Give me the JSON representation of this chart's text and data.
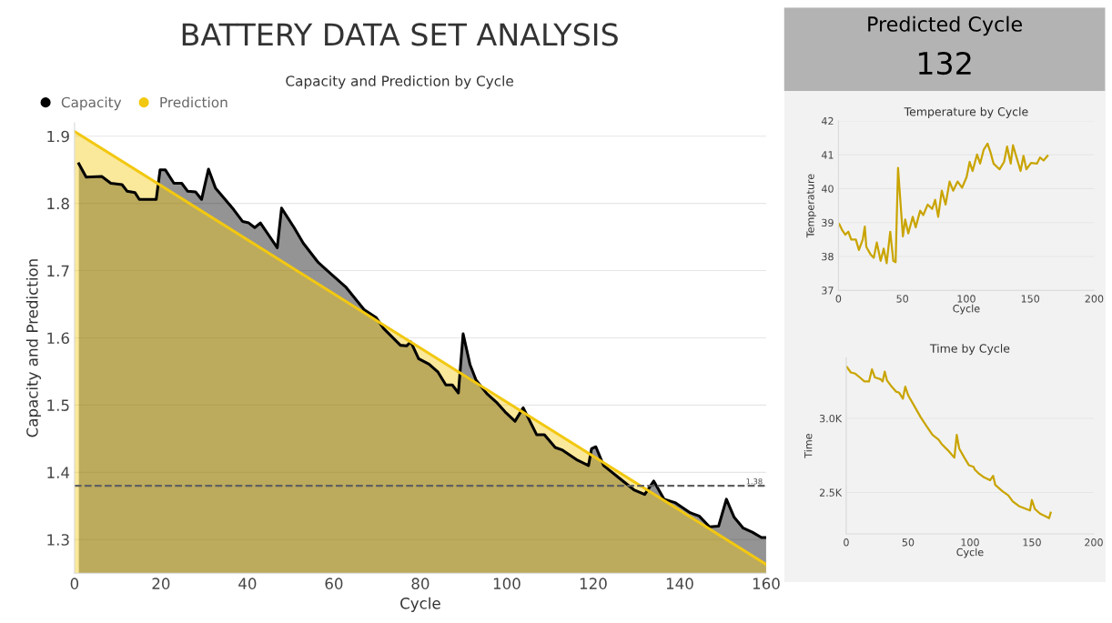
{
  "chart_data": [
    {
      "type": "area",
      "title": "BATTERY DATA SET ANALYSIS",
      "subtitle": "Capacity and Prediction by Cycle",
      "xlabel": "Cycle",
      "ylabel": "Capacity and Prediction",
      "xlim": [
        0,
        160
      ],
      "xticks": [
        0,
        20,
        40,
        60,
        80,
        100,
        120,
        140,
        160
      ],
      "ylim": [
        1.25,
        1.92
      ],
      "yticks": [
        1.3,
        1.4,
        1.5,
        1.6,
        1.7,
        1.8,
        1.9
      ],
      "grid": "y",
      "legend": "top left",
      "series": [
        {
          "name": "Capacity",
          "color": "#000000",
          "x": [
            1,
            2.7,
            6.3,
            8.4,
            11,
            12.2,
            14,
            15,
            18.9,
            19.8,
            21,
            23,
            24.8,
            26.2,
            28,
            29.4,
            31,
            32.6,
            36.8,
            38.9,
            40.3,
            41.7,
            43,
            46.9,
            47.9,
            50.8,
            52.9,
            56.4,
            59.2,
            62.7,
            67,
            69.8,
            71.5,
            75.4,
            76.8,
            77.8,
            79.6,
            82,
            84.1,
            85.9,
            87.4,
            88.8,
            89.9,
            91.5,
            92.9,
            95.4,
            97.8,
            99.6,
            101.9,
            103.8,
            106.9,
            108.7,
            111.2,
            112.9,
            116.1,
            118.9,
            119.6,
            120.6,
            122.4,
            125.9,
            129.4,
            131.9,
            134,
            136.4,
            138.9,
            142.4,
            144.5,
            146.9,
            149,
            150.8,
            152.6,
            154.7,
            156.8,
            158.9,
            160
          ],
          "values": [
            1.859,
            1.839,
            1.84,
            1.83,
            1.828,
            1.818,
            1.816,
            1.806,
            1.806,
            1.85,
            1.85,
            1.83,
            1.83,
            1.818,
            1.817,
            1.806,
            1.851,
            1.823,
            1.791,
            1.773,
            1.771,
            1.764,
            1.771,
            1.734,
            1.793,
            1.764,
            1.741,
            1.712,
            1.696,
            1.676,
            1.642,
            1.63,
            1.614,
            1.589,
            1.588,
            1.594,
            1.569,
            1.561,
            1.549,
            1.53,
            1.53,
            1.518,
            1.606,
            1.56,
            1.537,
            1.517,
            1.503,
            1.49,
            1.476,
            1.496,
            1.456,
            1.456,
            1.437,
            1.433,
            1.419,
            1.41,
            1.435,
            1.438,
            1.41,
            1.392,
            1.374,
            1.367,
            1.387,
            1.36,
            1.355,
            1.34,
            1.335,
            1.319,
            1.32,
            1.36,
            1.333,
            1.317,
            1.311,
            1.303,
            1.303
          ]
        },
        {
          "name": "Prediction",
          "color": "#f2c811",
          "x": [
            0,
            160
          ],
          "values": [
            1.907,
            1.263
          ]
        }
      ],
      "ref_lines": [
        {
          "axis": "y",
          "value": 1.38,
          "label": "1.38",
          "color": "#606060",
          "line_style": "dashed"
        }
      ]
    },
    {
      "type": "other",
      "title": "Predicted Cycle",
      "annotations": [
        "132"
      ]
    },
    {
      "type": "line",
      "title": "Temperature by Cycle",
      "xlabel": "Cycle",
      "ylabel": "Temperature",
      "xlim": [
        0,
        200
      ],
      "xticks": [
        0,
        50,
        100,
        150,
        200
      ],
      "ylim": [
        37,
        42
      ],
      "yticks": [
        37,
        38,
        39,
        40,
        41,
        42
      ],
      "grid": "y",
      "series": [
        {
          "color": "#c9a400",
          "x": [
            0.7,
            3,
            5.4,
            7.7,
            10,
            13.6,
            16,
            19,
            20.6,
            21.8,
            25.3,
            27.6,
            30,
            33,
            35.4,
            37.7,
            40.5,
            42.9,
            44.7,
            46.6,
            50.4,
            52.2,
            54.6,
            58.1,
            60.4,
            63.9,
            66.3,
            69.8,
            73.3,
            75.6,
            78,
            80.8,
            83.8,
            86.9,
            89.7,
            93.2,
            96.7,
            100.2,
            102.6,
            104.9,
            108.4,
            110.8,
            113.6,
            116.6,
            119,
            121.3,
            126,
            129.5,
            131.9,
            134.7,
            136.5,
            139.3,
            142.4,
            144.7,
            147,
            150.6,
            155.3,
            157.6,
            160.4,
            163.5
          ],
          "values": [
            38.95,
            38.77,
            38.64,
            38.73,
            38.5,
            38.5,
            38.19,
            38.5,
            38.88,
            38.28,
            38.05,
            37.96,
            38.41,
            37.87,
            38.23,
            37.8,
            38.73,
            37.87,
            37.83,
            40.61,
            38.59,
            39.09,
            38.68,
            39.17,
            38.86,
            39.35,
            39.22,
            39.53,
            39.4,
            39.67,
            39.17,
            39.94,
            39.53,
            40.21,
            39.94,
            40.21,
            40.03,
            40.34,
            40.79,
            40.52,
            41.01,
            40.74,
            41.15,
            41.33,
            41.06,
            40.74,
            40.57,
            40.79,
            41.24,
            40.74,
            41.28,
            40.92,
            40.52,
            40.97,
            40.57,
            40.76,
            40.74,
            40.92,
            40.83,
            40.97
          ]
        }
      ]
    },
    {
      "type": "line",
      "title": "Time by Cycle",
      "xlabel": "Cycle",
      "ylabel": "Time",
      "xlim": [
        0,
        200
      ],
      "xticks": [
        0,
        50,
        100,
        150,
        200
      ],
      "ylim": [
        2220,
        3410
      ],
      "yticks": [
        {
          "value": 2500,
          "label": "2.5K"
        },
        {
          "value": 3000,
          "label": "3.0K"
        }
      ],
      "grid": "y",
      "series": [
        {
          "color": "#c9a400",
          "x": [
            0.5,
            3.7,
            7.3,
            11,
            14.7,
            18.4,
            20.8,
            23.2,
            27.6,
            29.4,
            31.1,
            33,
            36.7,
            40.4,
            42.8,
            45.8,
            47.7,
            50.2,
            55.1,
            60,
            64.8,
            69.7,
            74.6,
            77.1,
            82,
            87.4,
            89.3,
            91.3,
            95.4,
            99.1,
            102.8,
            104,
            106.4,
            111.3,
            116.2,
            118.7,
            120.4,
            126,
            130.9,
            134.6,
            139.5,
            145.6,
            148.5,
            150,
            152.4,
            156.6,
            161.5,
            163.9,
            165.2
          ],
          "values": [
            3347,
            3310,
            3302,
            3276,
            3249,
            3249,
            3331,
            3276,
            3265,
            3249,
            3316,
            3255,
            3214,
            3180,
            3173,
            3133,
            3214,
            3153,
            3082,
            3010,
            2949,
            2888,
            2857,
            2827,
            2786,
            2735,
            2888,
            2796,
            2735,
            2684,
            2673,
            2653,
            2633,
            2602,
            2582,
            2612,
            2551,
            2510,
            2480,
            2439,
            2408,
            2388,
            2378,
            2449,
            2388,
            2357,
            2337,
            2326,
            2363
          ]
        }
      ]
    }
  ]
}
